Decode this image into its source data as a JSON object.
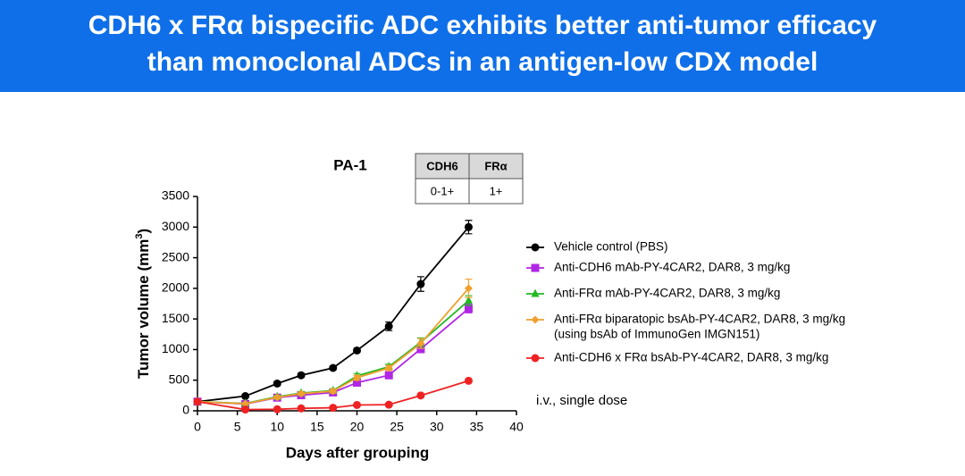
{
  "header": {
    "title_lines": [
      "CDH6 x FRα bispecific ADC exhibits better anti-tumor efficacy",
      "than monoclonal ADCs in an antigen-low CDX model"
    ]
  },
  "chart_data": {
    "type": "line",
    "title": "PA-1",
    "x_label": "Days after grouping",
    "y_label": {
      "text": "Tumor volume (mm",
      "sup": "3",
      "close": ")"
    },
    "xlim": [
      0,
      40
    ],
    "xticks": [
      0,
      5,
      10,
      15,
      20,
      25,
      30,
      35,
      40
    ],
    "ylim": [
      0,
      3500
    ],
    "yticks": [
      0,
      500,
      1000,
      1500,
      2000,
      2500,
      3000,
      3500
    ],
    "grid": false,
    "x": [
      0,
      6,
      10,
      13,
      17,
      20,
      24,
      28,
      34
    ],
    "series": [
      {
        "name": "Vehicle control (PBS)",
        "color": "#000000",
        "marker": "circle",
        "values": [
          150,
          240,
          445,
          580,
          700,
          985,
          1380,
          2070,
          3000
        ],
        "errors": [
          20,
          20,
          30,
          30,
          30,
          30,
          70,
          120,
          110
        ]
      },
      {
        "name": "Anti-CDH6 mAb-PY-4CAR2, DAR8, 3 mg/kg",
        "color": "#b026e6",
        "marker": "square",
        "values": [
          150,
          110,
          215,
          255,
          300,
          460,
          580,
          1010,
          1670
        ],
        "errors": [
          20,
          15,
          25,
          25,
          30,
          40,
          40,
          60,
          70
        ]
      },
      {
        "name": "Anti-FRα mAb-PY-4CAR2, DAR8, 3 mg/kg",
        "color": "#22b822",
        "marker": "triangle",
        "values": [
          150,
          120,
          230,
          290,
          330,
          570,
          720,
          1120,
          1800
        ],
        "errors": [
          20,
          15,
          25,
          25,
          30,
          40,
          40,
          70,
          80
        ]
      },
      {
        "name": "Anti-FRα biparatopic bsAb-PY-4CAR2, DAR8, 3 mg/kg",
        "note": "(using bsAb of ImmunoGen IMGN151)",
        "color": "#f0a030",
        "marker": "diamond",
        "values": [
          150,
          115,
          220,
          280,
          320,
          540,
          700,
          1100,
          2000
        ],
        "errors": [
          20,
          15,
          25,
          25,
          30,
          40,
          40,
          80,
          150
        ]
      },
      {
        "name": "Anti-CDH6 x FRα bsAb-PY-4CAR2, DAR8, 3 mg/kg",
        "color": "#ee2222",
        "marker": "circle",
        "values": [
          150,
          20,
          25,
          40,
          50,
          95,
          100,
          250,
          490
        ],
        "errors": [
          20,
          10,
          10,
          10,
          10,
          15,
          15,
          20,
          30
        ]
      }
    ],
    "annotation": "i.v., single dose",
    "table": {
      "header": [
        "CDH6",
        "FRα"
      ],
      "row": [
        "0-1+",
        "1+"
      ]
    }
  }
}
